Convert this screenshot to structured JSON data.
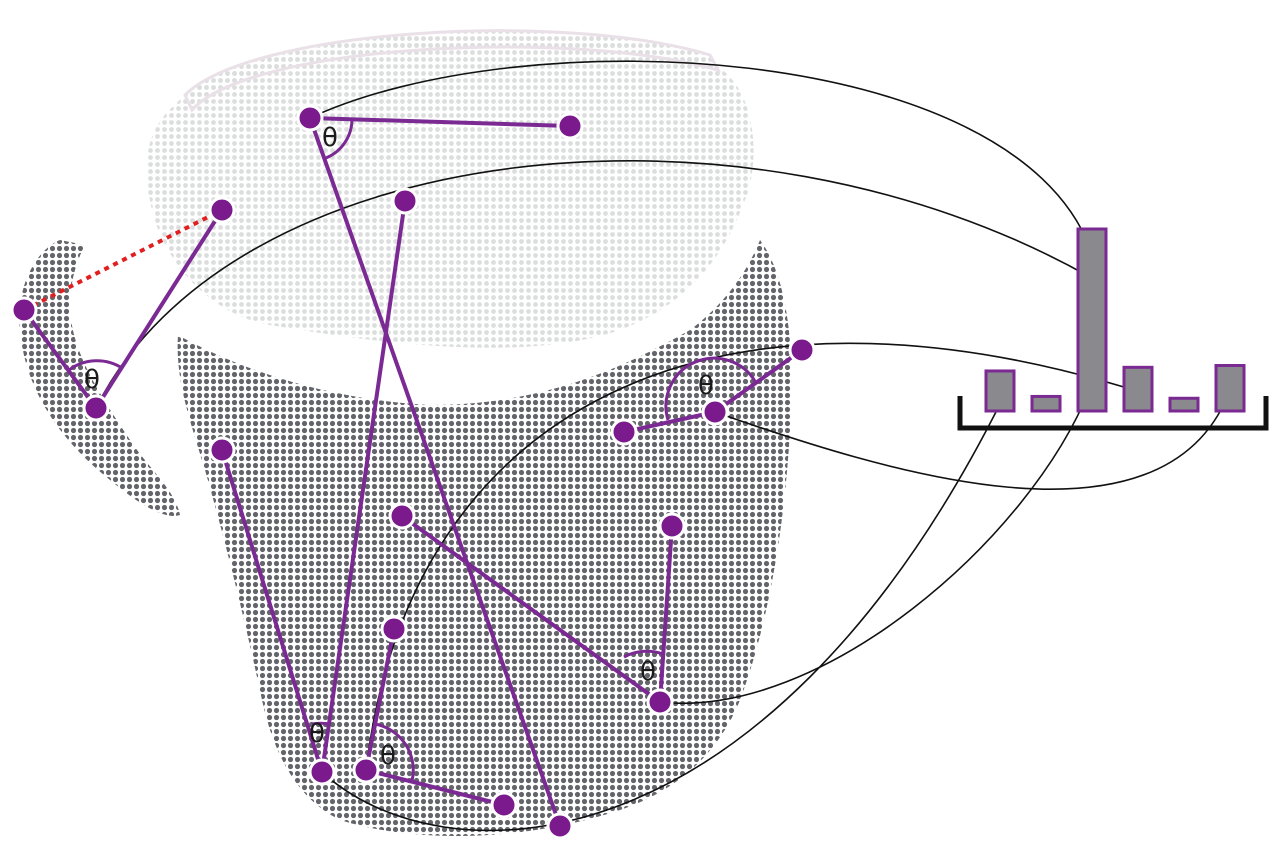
{
  "figure": {
    "angle_symbol": "θ",
    "colors": {
      "point": "#7b1a8c",
      "point_outline": "#ffffff",
      "segment": "#7b2a93",
      "dashed_segment": "#e02020",
      "connector": "#111111",
      "cloud_dark": "#6b6c72",
      "cloud_light": "#d8dada",
      "bar_fill": "#8a8a8e",
      "bar_outline": "#7b2a93",
      "histogram_axis": "#111111"
    },
    "histogram": {
      "bin_count": 6,
      "relative_heights": [
        0.22,
        0.08,
        1.0,
        0.24,
        0.07,
        0.25
      ]
    }
  }
}
